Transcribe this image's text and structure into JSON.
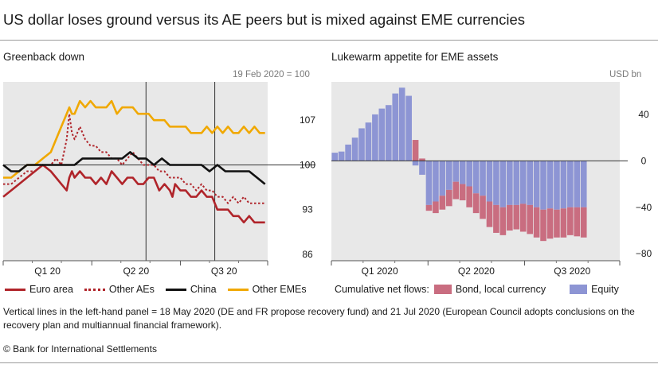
{
  "title": "US dollar loses ground versus its AE peers but is mixed against EME currencies",
  "footer": "© Bank for International Settlements",
  "note": "Vertical lines in the left-hand panel = 18 May 2020 (DE and FR propose recovery fund) and 21 Jul 2020 (European Council adopts conclusions on the recovery plan and multiannual financial framework).",
  "chart_data": [
    {
      "type": "line",
      "title": "Greenback down",
      "unit_label": "19 Feb 2020 = 100",
      "x_tick_labels": [
        "Q1 20",
        "Q2 20",
        "Q3 20"
      ],
      "y_ticks": [
        86,
        93,
        100,
        107
      ],
      "ylim": [
        85,
        113
      ],
      "reference_line": 100,
      "vertical_lines": [
        "18 May 2020",
        "21 Jul 2020"
      ],
      "x_domain": [
        0,
        100
      ],
      "series": [
        {
          "name": "Euro area",
          "color": "#b0242a",
          "dash": "solid",
          "x": [
            0,
            3,
            6,
            9,
            12,
            15,
            18,
            20,
            22,
            24,
            25,
            26,
            27,
            29,
            31,
            33,
            35,
            37,
            39,
            41,
            43,
            45,
            47,
            49,
            51,
            53,
            55,
            57,
            59,
            61,
            63,
            64,
            65,
            67,
            69,
            71,
            73,
            75,
            77,
            79,
            81,
            83,
            85,
            87,
            89,
            91,
            93,
            95,
            97,
            99
          ],
          "values": [
            95,
            96,
            97,
            98,
            99,
            100,
            99,
            98,
            97,
            96,
            98,
            99,
            98,
            99,
            98,
            98,
            97,
            98,
            97,
            99,
            98,
            97,
            98,
            98,
            97,
            97,
            98,
            98,
            96,
            97,
            96,
            95,
            97,
            96,
            96,
            95,
            95,
            96,
            95,
            95,
            93,
            93,
            93,
            92,
            92,
            91,
            92,
            91,
            91,
            91
          ]
        },
        {
          "name": "Other AEs",
          "color": "#b0242a",
          "dash": "dotted",
          "x": [
            0,
            3,
            6,
            9,
            12,
            15,
            18,
            20,
            22,
            24,
            25,
            26,
            27,
            29,
            31,
            33,
            35,
            37,
            39,
            41,
            43,
            45,
            47,
            49,
            51,
            53,
            55,
            57,
            59,
            61,
            63,
            65,
            67,
            69,
            71,
            73,
            75,
            77,
            79,
            81,
            83,
            85,
            87,
            89,
            91,
            93,
            95,
            97,
            99
          ],
          "values": [
            97,
            97,
            98,
            99,
            99,
            100,
            100,
            101,
            100,
            104,
            108,
            105,
            104,
            106,
            104,
            103,
            103,
            102,
            102,
            101,
            101,
            100,
            101,
            102,
            101,
            100,
            100,
            100,
            99,
            99,
            98,
            98,
            98,
            97,
            97,
            96,
            97,
            96,
            96,
            95,
            95,
            94,
            95,
            94,
            95,
            94,
            94,
            94,
            94
          ]
        },
        {
          "name": "China",
          "color": "#111111",
          "dash": "solid",
          "x": [
            0,
            3,
            6,
            9,
            12,
            15,
            18,
            21,
            24,
            27,
            30,
            33,
            36,
            39,
            42,
            45,
            48,
            51,
            54,
            57,
            60,
            63,
            66,
            69,
            72,
            75,
            78,
            81,
            84,
            87,
            90,
            93,
            96,
            99
          ],
          "values": [
            100,
            99,
            99,
            100,
            100,
            100,
            100,
            100,
            100,
            100,
            101,
            101,
            101,
            101,
            101,
            101,
            102,
            101,
            101,
            100,
            101,
            100,
            100,
            100,
            100,
            100,
            99,
            100,
            99,
            99,
            99,
            99,
            98,
            97
          ]
        },
        {
          "name": "Other EMEs",
          "color": "#f0a800",
          "dash": "solid",
          "x": [
            0,
            3,
            6,
            9,
            12,
            15,
            18,
            20,
            22,
            24,
            25,
            26,
            27,
            29,
            31,
            33,
            35,
            37,
            39,
            41,
            43,
            45,
            47,
            49,
            51,
            53,
            55,
            57,
            59,
            61,
            63,
            65,
            67,
            69,
            71,
            73,
            75,
            77,
            79,
            81,
            83,
            85,
            87,
            89,
            91,
            93,
            95,
            97,
            99
          ],
          "values": [
            98,
            98,
            99,
            100,
            100,
            101,
            102,
            104,
            106,
            108,
            109,
            108,
            108,
            110,
            109,
            110,
            109,
            109,
            109,
            110,
            108,
            109,
            109,
            109,
            108,
            108,
            108,
            107,
            107,
            107,
            106,
            106,
            106,
            106,
            105,
            105,
            105,
            106,
            105,
            106,
            105,
            106,
            105,
            105,
            106,
            105,
            106,
            105,
            105
          ]
        }
      ]
    },
    {
      "type": "bar",
      "stacked": true,
      "title": "Lukewarm appetite for EME assets",
      "unit_label": "USD bn",
      "x_tick_labels": [
        "Q1 2020",
        "Q2 2020",
        "Q3 2020"
      ],
      "y_ticks": [
        -80,
        -40,
        0,
        40
      ],
      "ylim": [
        -86,
        68
      ],
      "x_domain": [
        0,
        100
      ],
      "bar_x": [
        0,
        2.33,
        4.67,
        7,
        9.33,
        11.67,
        14,
        16.33,
        18.67,
        21,
        23.33,
        25.67,
        28,
        30.33,
        32.67,
        35,
        37.33,
        39.67,
        42,
        44.33,
        46.67,
        49,
        51.33,
        53.67,
        56,
        58.33,
        60.67,
        63,
        65.33,
        67.67,
        70,
        72.33,
        74.67,
        77,
        79.33,
        81.67,
        84,
        86.33
      ],
      "bar_width": 2.33,
      "legend_prefix": "Cumulative net flows:",
      "series": [
        {
          "name": "Bond, local currency",
          "color": "#c96d80",
          "values": [
            4,
            5,
            12,
            18,
            26,
            30,
            38,
            42,
            46,
            57,
            62,
            55,
            18,
            2,
            -5,
            -10,
            -12,
            -14,
            -15,
            -14,
            -18,
            -17,
            -20,
            -22,
            -24,
            -24,
            -22,
            -21,
            -24,
            -25,
            -26,
            -27,
            -26,
            -24,
            -25,
            -24,
            -25,
            -26
          ]
        },
        {
          "name": "Equity",
          "color": "#8d95d4",
          "values": [
            3,
            3,
            2,
            2,
            2,
            3,
            2,
            3,
            2,
            1,
            1,
            1,
            -4,
            -12,
            -38,
            -35,
            -30,
            -25,
            -18,
            -20,
            -22,
            -28,
            -30,
            -35,
            -38,
            -40,
            -38,
            -38,
            -37,
            -38,
            -40,
            -42,
            -41,
            -42,
            -41,
            -40,
            -40,
            -40
          ]
        }
      ]
    }
  ]
}
